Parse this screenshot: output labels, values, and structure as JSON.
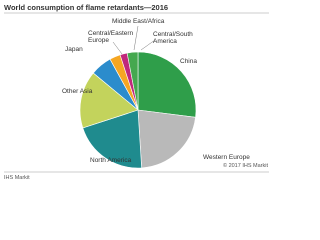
{
  "chart_data": {
    "type": "pie",
    "title": "World consumption of flame retardants—2016",
    "categories": [
      "China",
      "Western Europe",
      "North America",
      "Other Asia",
      "Japan",
      "Central/Eastern Europe",
      "Middle East/Africa",
      "Central/South America"
    ],
    "values": [
      27,
      22,
      21,
      16,
      6,
      3,
      2,
      3
    ],
    "colors": [
      "#2f9e4a",
      "#b9b9b9",
      "#1f8b8e",
      "#c3d35c",
      "#2b8ccc",
      "#f5a623",
      "#c0287c",
      "#45a84f"
    ],
    "copyright": "© 2017 IHS Markit",
    "source": "IHS Markit"
  }
}
